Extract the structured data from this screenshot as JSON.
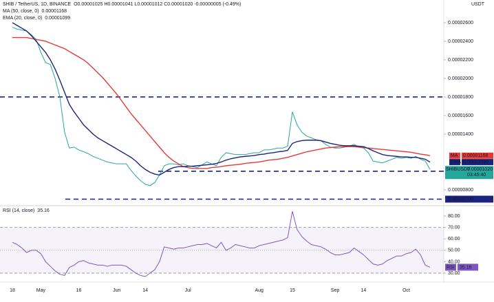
{
  "chart_data": [
    {
      "type": "line",
      "title": "SHIB / TetherUS, 1D, BINANCE",
      "ohlc": "O0.00001025 H0.00001041 L0.00001012 C0.00001020 -0.00000005 (-0.49%)",
      "unit": "USDT",
      "ylim": [
        6.37e-06,
        2.844e-05
      ],
      "yticks": [
        {
          "value": 2.6e-05,
          "label": "0.00002600"
        },
        {
          "value": 2.4e-05,
          "label": "0.00002400"
        },
        {
          "value": 2.2e-05,
          "label": "0.00002200"
        },
        {
          "value": 2e-05,
          "label": "0.00002000"
        },
        {
          "value": 1.8e-05,
          "label": "0.00001800"
        },
        {
          "value": 1.6e-05,
          "label": "0.00001600"
        },
        {
          "value": 1.4e-05,
          "label": "0.00001400"
        },
        {
          "value": 8e-06,
          "label": "0.00000800"
        }
      ],
      "levels": [
        {
          "value": 1.8e-05
        },
        {
          "value": 1e-05,
          "label": "0.00001000"
        },
        {
          "value": 7e-06,
          "label": "0.00000700"
        }
      ],
      "level_color": "#1a237e",
      "series": [
        {
          "name": "SHIBUSDT",
          "color": "#26a69a",
          "last_label": "0.00001020",
          "countdown": "03:45:40",
          "values": [
            2.55e-05,
            2.53e-05,
            2.52e-05,
            2.51e-05,
            2.47e-05,
            2.42e-05,
            2.28e-05,
            2.17e-05,
            2.15e-05,
            2e-05,
            1.8e-05,
            1.42e-05,
            1.25e-05,
            1.26e-05,
            1.23e-05,
            1.21e-05,
            1.19e-05,
            1.16e-05,
            1.14e-05,
            1.12e-05,
            1.1e-05,
            1.09e-05,
            1.08e-05,
            1.08e-05,
            1.08e-05,
            1.01e-05,
            9.5e-06,
            9e-06,
            8.6e-06,
            8.45e-06,
            8.8e-06,
            9.6e-06,
            1.06e-05,
            1.08e-05,
            1.08e-05,
            1.07e-05,
            1.08e-05,
            1.06e-05,
            1.05e-05,
            1.04e-05,
            1.07e-05,
            1.1e-05,
            1.08e-05,
            1.06e-05,
            1.15e-05,
            1.2e-05,
            1.19e-05,
            1.18e-05,
            1.18e-05,
            1.18e-05,
            1.19e-05,
            1.2e-05,
            1.2e-05,
            1.23e-05,
            1.23e-05,
            1.24e-05,
            1.25e-05,
            1.25e-05,
            1.27e-05,
            1.64e-05,
            1.5e-05,
            1.42e-05,
            1.38e-05,
            1.36e-05,
            1.34e-05,
            1.33e-05,
            1.29e-05,
            1.26e-05,
            1.25e-05,
            1.25e-05,
            1.26e-05,
            1.27e-05,
            1.29e-05,
            1.26e-05,
            1.25e-05,
            1.2e-05,
            1.11e-05,
            1.1e-05,
            1.09e-05,
            1.11e-05,
            1.13e-05,
            1.15e-05,
            1.14e-05,
            1.15e-05,
            1.14e-05,
            1.16e-05,
            1.13e-05,
            1.11e-05,
            1.02e-05
          ]
        },
        {
          "name": "MA (50, close, 0)",
          "tag": "MA",
          "color": "#e53935",
          "last_label": "0.00001168",
          "values": [
            2.44e-05,
            2.44e-05,
            2.44e-05,
            2.44e-05,
            2.43e-05,
            2.42e-05,
            2.41e-05,
            2.4e-05,
            2.38e-05,
            2.36e-05,
            2.34e-05,
            2.32e-05,
            2.29e-05,
            2.26e-05,
            2.23e-05,
            2.2e-05,
            2.16e-05,
            2.11e-05,
            2.06e-05,
            2.01e-05,
            1.95e-05,
            1.89e-05,
            1.83e-05,
            1.76e-05,
            1.69e-05,
            1.62e-05,
            1.56e-05,
            1.5e-05,
            1.44e-05,
            1.38e-05,
            1.32e-05,
            1.26e-05,
            1.2e-05,
            1.15e-05,
            1.11e-05,
            1.08e-05,
            1.05e-05,
            1.04e-05,
            1.03e-05,
            1.03e-05,
            1.03e-05,
            1.03e-05,
            1.04e-05,
            1.045e-05,
            1.05e-05,
            1.06e-05,
            1.065e-05,
            1.07e-05,
            1.075e-05,
            1.085e-05,
            1.09e-05,
            1.095e-05,
            1.1e-05,
            1.11e-05,
            1.12e-05,
            1.125e-05,
            1.13e-05,
            1.14e-05,
            1.15e-05,
            1.165e-05,
            1.18e-05,
            1.195e-05,
            1.21e-05,
            1.22e-05,
            1.23e-05,
            1.24e-05,
            1.25e-05,
            1.255e-05,
            1.26e-05,
            1.265e-05,
            1.265e-05,
            1.265e-05,
            1.265e-05,
            1.26e-05,
            1.255e-05,
            1.25e-05,
            1.245e-05,
            1.24e-05,
            1.235e-05,
            1.23e-05,
            1.225e-05,
            1.22e-05,
            1.215e-05,
            1.21e-05,
            1.205e-05,
            1.195e-05,
            1.185e-05,
            1.178e-05,
            1.168e-05
          ]
        },
        {
          "name": "EMA (20, close, 0)",
          "tag": "EMA",
          "color": "#1a237e",
          "last_label": "0.00001099",
          "values": [
            2.6e-05,
            2.57e-05,
            2.54e-05,
            2.51e-05,
            2.46e-05,
            2.4e-05,
            2.34e-05,
            2.28e-05,
            2.2e-05,
            2.1e-05,
            1.98e-05,
            1.85e-05,
            1.72e-05,
            1.64e-05,
            1.57e-05,
            1.5e-05,
            1.45e-05,
            1.4e-05,
            1.36e-05,
            1.33e-05,
            1.3e-05,
            1.27e-05,
            1.24e-05,
            1.21e-05,
            1.18e-05,
            1.15e-05,
            1.11e-05,
            1.06e-05,
            1.02e-05,
            9.9e-06,
            9.7e-06,
            9.6e-06,
            9.9e-06,
            1.02e-05,
            1.04e-05,
            1.05e-05,
            1.05e-05,
            1.055e-05,
            1.055e-05,
            1.06e-05,
            1.065e-05,
            1.07e-05,
            1.075e-05,
            1.085e-05,
            1.1e-05,
            1.12e-05,
            1.135e-05,
            1.145e-05,
            1.155e-05,
            1.16e-05,
            1.165e-05,
            1.17e-05,
            1.18e-05,
            1.185e-05,
            1.195e-05,
            1.2e-05,
            1.21e-05,
            1.215e-05,
            1.225e-05,
            1.3e-05,
            1.32e-05,
            1.33e-05,
            1.335e-05,
            1.335e-05,
            1.335e-05,
            1.33e-05,
            1.315e-05,
            1.3e-05,
            1.29e-05,
            1.28e-05,
            1.275e-05,
            1.275e-05,
            1.275e-05,
            1.27e-05,
            1.265e-05,
            1.245e-05,
            1.22e-05,
            1.2e-05,
            1.18e-05,
            1.17e-05,
            1.165e-05,
            1.16e-05,
            1.155e-05,
            1.155e-05,
            1.15e-05,
            1.15e-05,
            1.14e-05,
            1.13e-05,
            1.099e-05
          ]
        }
      ]
    },
    {
      "type": "line",
      "title": "RSI (14, close)",
      "tag": "RSI",
      "color": "#7e57c2",
      "band": [
        30,
        70
      ],
      "midline": 50,
      "ylim": [
        23.4,
        88.4
      ],
      "yticks": [
        {
          "value": 80,
          "label": "80.00"
        },
        {
          "value": 70,
          "label": "70.00"
        },
        {
          "value": 60,
          "label": "60.00"
        },
        {
          "value": 50,
          "label": "50.00"
        },
        {
          "value": 40,
          "label": "40.00"
        },
        {
          "value": 30,
          "label": "30.00"
        }
      ],
      "categories": [
        "18",
        null,
        null,
        null,
        null,
        null,
        "May",
        null,
        null,
        null,
        null,
        null,
        null,
        null,
        "16",
        null,
        null,
        null,
        null,
        null,
        null,
        null,
        "Jun",
        null,
        null,
        null,
        null,
        null,
        "14",
        null,
        null,
        null,
        null,
        null,
        null,
        null,
        null,
        "Jul",
        null,
        null,
        null,
        null,
        null,
        null,
        null,
        null,
        null,
        null,
        null,
        null,
        null,
        null,
        "Aug",
        null,
        null,
        null,
        null,
        null,
        null,
        "15",
        null,
        null,
        null,
        null,
        null,
        null,
        null,
        null,
        "Sep",
        null,
        null,
        null,
        null,
        null,
        "14",
        null,
        null,
        null,
        null,
        null,
        null,
        null,
        null,
        "Oct",
        null,
        null,
        null,
        null,
        null
      ],
      "values": [
        57,
        55,
        52,
        48,
        50,
        50,
        47,
        40,
        36,
        32,
        29,
        28,
        35,
        37,
        40,
        41,
        39,
        38,
        37,
        37,
        36,
        37,
        37,
        37,
        36,
        33,
        30,
        28,
        27,
        30,
        33,
        40,
        53,
        52,
        51,
        52,
        52,
        53,
        54,
        55,
        55,
        56,
        54,
        52,
        57,
        50,
        52,
        55,
        54,
        53,
        52,
        52,
        54,
        55,
        56,
        57,
        58,
        59,
        61,
        84,
        68,
        62,
        58,
        55,
        54,
        53,
        51,
        48,
        46,
        46,
        47,
        48,
        52,
        49,
        46,
        42,
        38,
        37,
        38,
        41,
        43,
        45,
        45,
        47,
        48,
        51,
        46,
        37,
        35.16
      ]
    }
  ]
}
